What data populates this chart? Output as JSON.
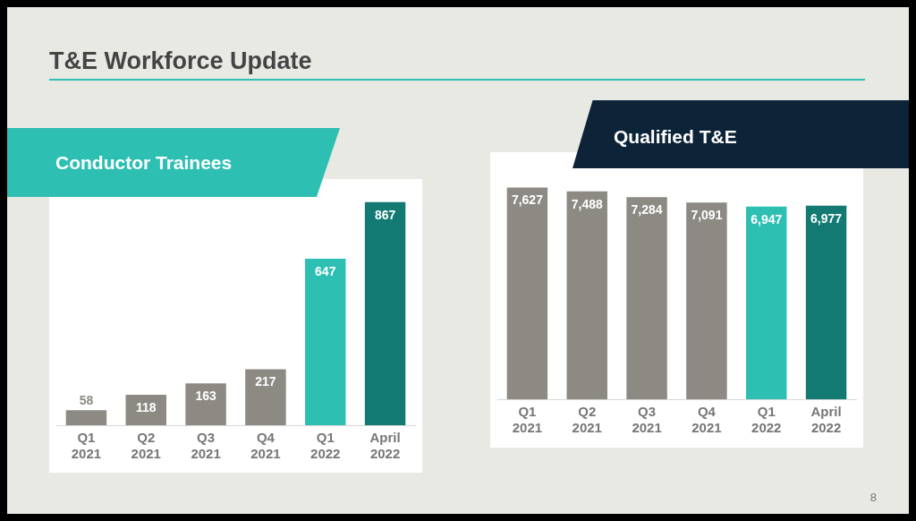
{
  "chart_data": [
    {
      "type": "bar",
      "title": "Conductor Trainees",
      "categories": [
        "Q1 2021",
        "Q2 2021",
        "Q3 2021",
        "Q4 2021",
        "Q1 2022",
        "April 2022"
      ],
      "values": [
        58,
        118,
        163,
        217,
        647,
        867
      ],
      "colors": [
        "#8c8a83",
        "#8c8a83",
        "#8c8a83",
        "#8c8a83",
        "#2ebfb3",
        "#127a72"
      ],
      "ylim": [
        0,
        880
      ],
      "tick_labels": "x",
      "grid": false,
      "data_labels": true,
      "annotations": [
        "T&E Workforce Update",
        "8"
      ]
    },
    {
      "type": "bar",
      "title": "Qualified T&E",
      "categories": [
        "Q1 2021",
        "Q2 2021",
        "Q3 2021",
        "Q4 2021",
        "Q1 2022",
        "April 2022"
      ],
      "values": [
        7627,
        7488,
        7284,
        7091,
        6947,
        6977
      ],
      "colors": [
        "#8c8a83",
        "#8c8a83",
        "#8c8a83",
        "#8c8a83",
        "#2ebfb3",
        "#127a72"
      ],
      "tick_labels": "x",
      "grid": false,
      "value_labels": [
        "7,627",
        "7,488",
        "7,284",
        "7,091",
        "6,947",
        "6,977"
      ]
    }
  ]
}
